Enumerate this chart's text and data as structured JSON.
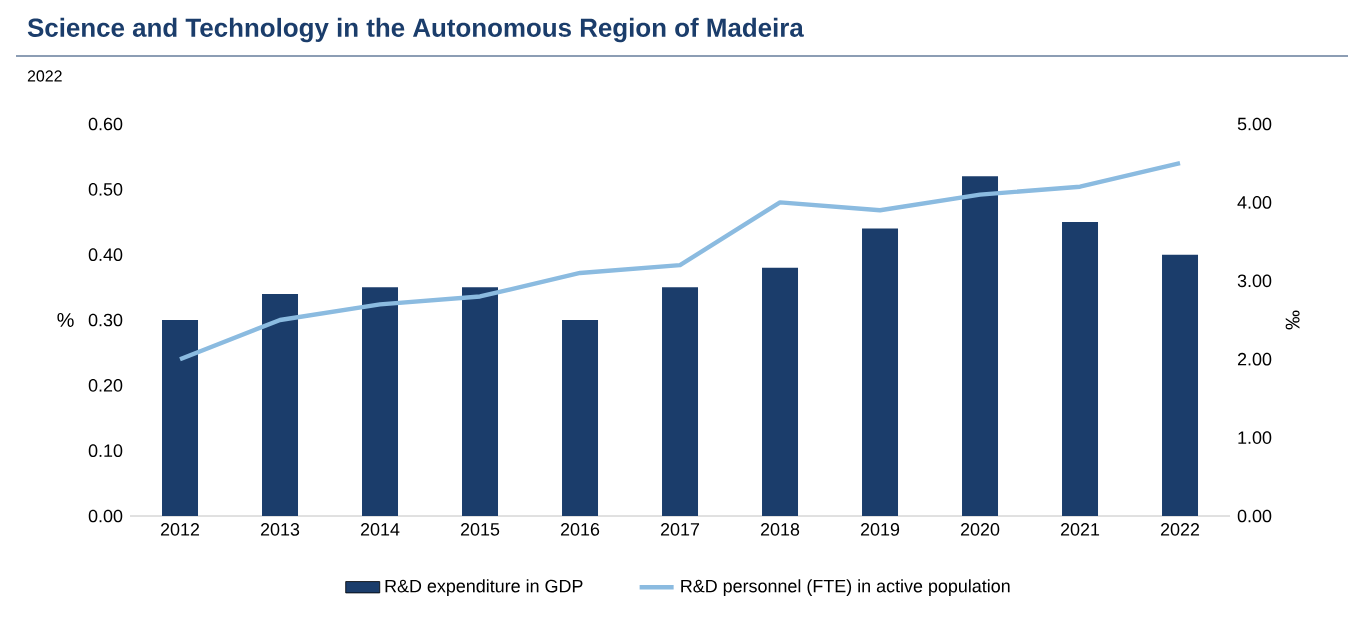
{
  "chart_data": {
    "type": "bar",
    "title": "Science and Technology in the Autonomous Region of Madeira",
    "subtitle": "2022",
    "ylabel": "%",
    "y2label": "‰",
    "legend": "bottom",
    "categories": [
      "2012",
      "2013",
      "2014",
      "2015",
      "2016",
      "2017",
      "2018",
      "2019",
      "2020",
      "2021",
      "2022"
    ],
    "series": [
      {
        "name": "R&D expenditure in GDP",
        "color": "#1b3d6b",
        "values": [
          0.3,
          0.34,
          0.35,
          0.35,
          0.3,
          0.35,
          0.38,
          0.44,
          0.52,
          0.45,
          0.4
        ]
      },
      {
        "name": "R&D personnel (FTE) in active population",
        "type": "line",
        "axis": "y2",
        "color": "#8bbbe0",
        "values": [
          2.0,
          2.5,
          2.7,
          2.8,
          3.1,
          3.2,
          4.0,
          3.9,
          4.1,
          4.2,
          4.5
        ]
      }
    ],
    "ylim": [
      0,
      0.6
    ],
    "yticks": [
      {
        "value": 0,
        "label": "0.00"
      },
      {
        "value": 0.1,
        "label": "0.10"
      },
      {
        "value": 0.2,
        "label": "0.20"
      },
      {
        "value": 0.3,
        "label": "0.30"
      },
      {
        "value": 0.4,
        "label": "0.40"
      },
      {
        "value": 0.5,
        "label": "0.50"
      },
      {
        "value": 0.6,
        "label": "0.60"
      }
    ],
    "y2lim": [
      0,
      5
    ],
    "y2ticks": [
      {
        "value": 0,
        "label": "0.00"
      },
      {
        "value": 1,
        "label": "1.00"
      },
      {
        "value": 2,
        "label": "2.00"
      },
      {
        "value": 3,
        "label": "3.00"
      },
      {
        "value": 4,
        "label": "4.00"
      },
      {
        "value": 5,
        "label": "5.00"
      }
    ]
  }
}
